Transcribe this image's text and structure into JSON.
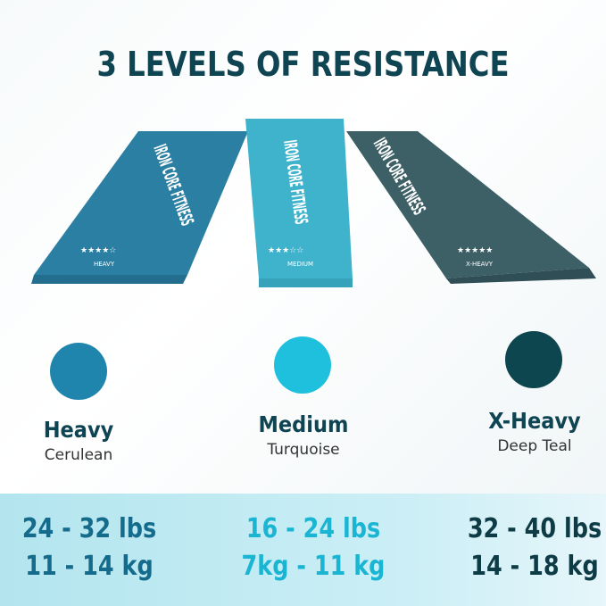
{
  "title": "3 LEVELS OF RESISTANCE",
  "bands": [
    {
      "brand": "IRON CORE FITNESS",
      "label": "HEAVY",
      "stars": 4,
      "color": "#2b7fa3"
    },
    {
      "brand": "IRON CORE FITNESS",
      "label": "MEDIUM",
      "stars": 3,
      "color": "#3fb3cc"
    },
    {
      "brand": "IRON CORE FITNESS",
      "label": "X-HEAVY",
      "stars": 5,
      "color": "#3d5f66"
    }
  ],
  "levels": [
    {
      "name": "Heavy",
      "color_name": "Cerulean",
      "color": "#1f85ad",
      "lbs": "24 - 32 lbs",
      "kg": "11 - 14 kg",
      "text_color": "#146b8c"
    },
    {
      "name": "Medium",
      "color_name": "Turquoise",
      "color": "#1fc0dd",
      "lbs": "16 - 24 lbs",
      "kg": "7kg - 11 kg",
      "text_color": "#1ab5d2"
    },
    {
      "name": "X-Heavy",
      "color_name": "Deep Teal",
      "color": "#0e4650",
      "lbs": "32 - 40 lbs",
      "kg": "14 - 18 kg",
      "text_color": "#0e3c46"
    }
  ]
}
